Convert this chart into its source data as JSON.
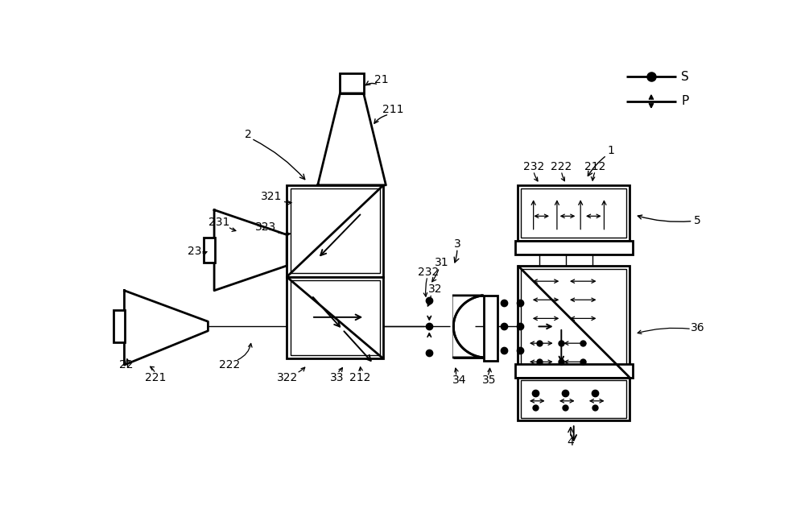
{
  "bg_color": "#ffffff",
  "lc": "#000000",
  "figsize": [
    10.0,
    6.32
  ],
  "dpi": 100,
  "lw_thick": 2.0,
  "lw_med": 1.4,
  "lw_thin": 1.0,
  "fs": 10
}
